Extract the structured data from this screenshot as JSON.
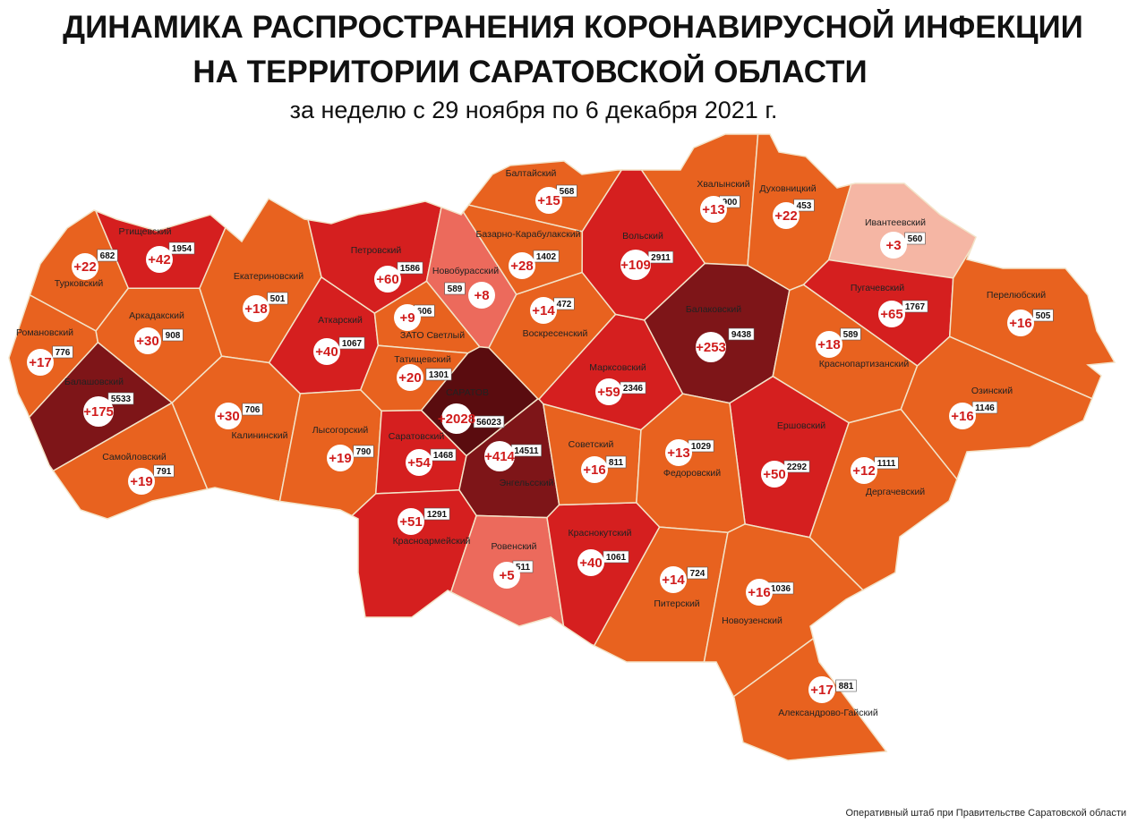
{
  "header": {
    "title_line1": "ДИНАМИКА РАСПРОСТРАНЕНИЯ КОРОНАВИРУСНОЙ ИНФЕКЦИИ",
    "title_line2": "НА ТЕРРИТОРИИ САРАТОВСКОЙ ОБЛАСТИ",
    "subtitle": "за неделю с 29 ноября по 6 декабря 2021 г."
  },
  "districts": [
    {
      "name": "Ртищевский",
      "increase": "+42",
      "total": "1954",
      "color": "#d51f1f"
    },
    {
      "name": "Турковский",
      "increase": "+22",
      "total": "682",
      "color": "#e8621f"
    },
    {
      "name": "Романовский",
      "increase": "+17",
      "total": "776",
      "color": "#e8621f"
    },
    {
      "name": "Аркадакский",
      "increase": "+30",
      "total": "908",
      "color": "#e8621f"
    },
    {
      "name": "Екатериновский",
      "increase": "+18",
      "total": "501",
      "color": "#e8621f"
    },
    {
      "name": "Балашовский",
      "increase": "+175",
      "total": "5533",
      "color": "#7e1518"
    },
    {
      "name": "Самойловский",
      "increase": "+19",
      "total": "791",
      "color": "#e8621f"
    },
    {
      "name": "Калининский",
      "increase": "+30",
      "total": "706",
      "color": "#e8621f"
    },
    {
      "name": "Аткарский",
      "increase": "+40",
      "total": "1067",
      "color": "#d51f1f"
    },
    {
      "name": "Петровский",
      "increase": "+60",
      "total": "1586",
      "color": "#d51f1f"
    },
    {
      "name": "Новобурасский",
      "increase": "+8",
      "total": "589",
      "color": "#ec6a5c"
    },
    {
      "name": "ЗАТО Светлый",
      "increase": "+9",
      "total": "606",
      "color": "#e8621f"
    },
    {
      "name": "Татищевский",
      "increase": "+20",
      "total": "1301",
      "color": "#e8621f"
    },
    {
      "name": "Лысогорский",
      "increase": "+19",
      "total": "790",
      "color": "#e8621f"
    },
    {
      "name": "Саратовский",
      "increase": "+54",
      "total": "1468",
      "color": "#d51f1f"
    },
    {
      "name": "САРАТОВ",
      "increase": "+2028",
      "total": "56023",
      "color": "#5a0c0f"
    },
    {
      "name": "Энгельсский",
      "increase": "+414",
      "total": "14511",
      "color": "#7e1518"
    },
    {
      "name": "Красноармейский",
      "increase": "+51",
      "total": "1291",
      "color": "#d51f1f"
    },
    {
      "name": "Ровенский",
      "increase": "+5",
      "total": "511",
      "color": "#ec6a5c"
    },
    {
      "name": "Краснокутский",
      "increase": "+40",
      "total": "1061",
      "color": "#d51f1f"
    },
    {
      "name": "Советский",
      "increase": "+16",
      "total": "811",
      "color": "#e8621f"
    },
    {
      "name": "Марксовский",
      "increase": "+59",
      "total": "2346",
      "color": "#d51f1f"
    },
    {
      "name": "Воскресенский",
      "increase": "+14",
      "total": "472",
      "color": "#e8621f"
    },
    {
      "name": "Базарно-Карабулакский",
      "increase": "+28",
      "total": "1402",
      "color": "#e8621f"
    },
    {
      "name": "Балтайский",
      "increase": "+15",
      "total": "568",
      "color": "#e8621f"
    },
    {
      "name": "Вольский",
      "increase": "+109",
      "total": "2911",
      "color": "#d51f1f"
    },
    {
      "name": "Хвалынский",
      "increase": "+13",
      "total": "900",
      "color": "#e8621f"
    },
    {
      "name": "Духовницкий",
      "increase": "+22",
      "total": "453",
      "color": "#e8621f"
    },
    {
      "name": "Ивантеевский",
      "increase": "+3",
      "total": "560",
      "color": "#f5b6a4"
    },
    {
      "name": "Балаковский",
      "increase": "+253",
      "total": "9438",
      "color": "#7e1518"
    },
    {
      "name": "Пугачевский",
      "increase": "+65",
      "total": "1767",
      "color": "#d51f1f"
    },
    {
      "name": "Перелюбский",
      "increase": "+16",
      "total": "505",
      "color": "#e8621f"
    },
    {
      "name": "Краснопартизанский",
      "increase": "+18",
      "total": "589",
      "color": "#e8621f"
    },
    {
      "name": "Озинский",
      "increase": "+16",
      "total": "1146",
      "color": "#e8621f"
    },
    {
      "name": "Ершовский",
      "increase": "+50",
      "total": "2292",
      "color": "#d51f1f"
    },
    {
      "name": "Федоровский",
      "increase": "+13",
      "total": "1029",
      "color": "#e8621f"
    },
    {
      "name": "Дергачевский",
      "increase": "+12",
      "total": "1111",
      "color": "#e8621f"
    },
    {
      "name": "Питерский",
      "increase": "+14",
      "total": "724",
      "color": "#e8621f"
    },
    {
      "name": "Новоузенский",
      "increase": "+16",
      "total": "1036",
      "color": "#e8621f"
    },
    {
      "name": "Александрово-Гайский",
      "increase": "+17",
      "total": "881",
      "color": "#e8621f"
    }
  ],
  "footer": {
    "source": "Оперативный штаб при Правительстве Саратовской области"
  }
}
